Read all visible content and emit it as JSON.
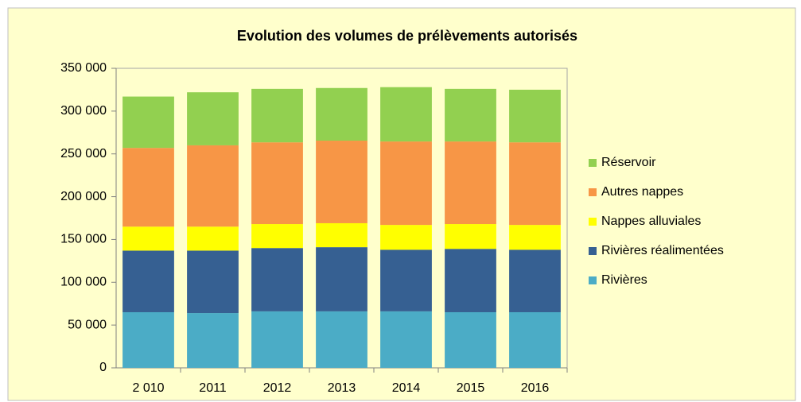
{
  "chart_data": {
    "type": "stacked_bar",
    "title": "Evolution des volumes de prélèvements autorisés",
    "categories": [
      "2 010",
      "2011",
      "2012",
      "2013",
      "2014",
      "2015",
      "2016"
    ],
    "series": [
      {
        "name": "Rivières",
        "color": "#4bacc6",
        "values": [
          65000,
          64000,
          66000,
          66000,
          66000,
          65000,
          65000
        ]
      },
      {
        "name": "Rivières réalimentées",
        "color": "#366092",
        "values": [
          72000,
          73000,
          74000,
          75000,
          72000,
          74000,
          73000
        ]
      },
      {
        "name": "Nappes alluviales",
        "color": "#ffff00",
        "values": [
          28000,
          28000,
          28000,
          28000,
          29000,
          29000,
          29000
        ]
      },
      {
        "name": "Autres nappes",
        "color": "#f79646",
        "values": [
          92000,
          95000,
          95500,
          96500,
          97500,
          96500,
          96500
        ]
      },
      {
        "name": "Réservoir",
        "color": "#92d050",
        "values": [
          60000,
          62000,
          62500,
          61500,
          63500,
          61500,
          61500
        ]
      }
    ],
    "ylim": [
      0,
      350000
    ],
    "yticks": [
      0,
      {
        "value": 50000,
        "label": "50 000"
      },
      {
        "value": 100000,
        "label": "100 000"
      },
      {
        "value": 150000,
        "label": "150 000"
      },
      {
        "value": 200000,
        "label": "200 000"
      },
      {
        "value": 250000,
        "label": "250 000"
      },
      {
        "value": 300000,
        "label": "300 000"
      },
      {
        "value": 350000,
        "label": "350 000"
      }
    ],
    "legend": "right"
  }
}
